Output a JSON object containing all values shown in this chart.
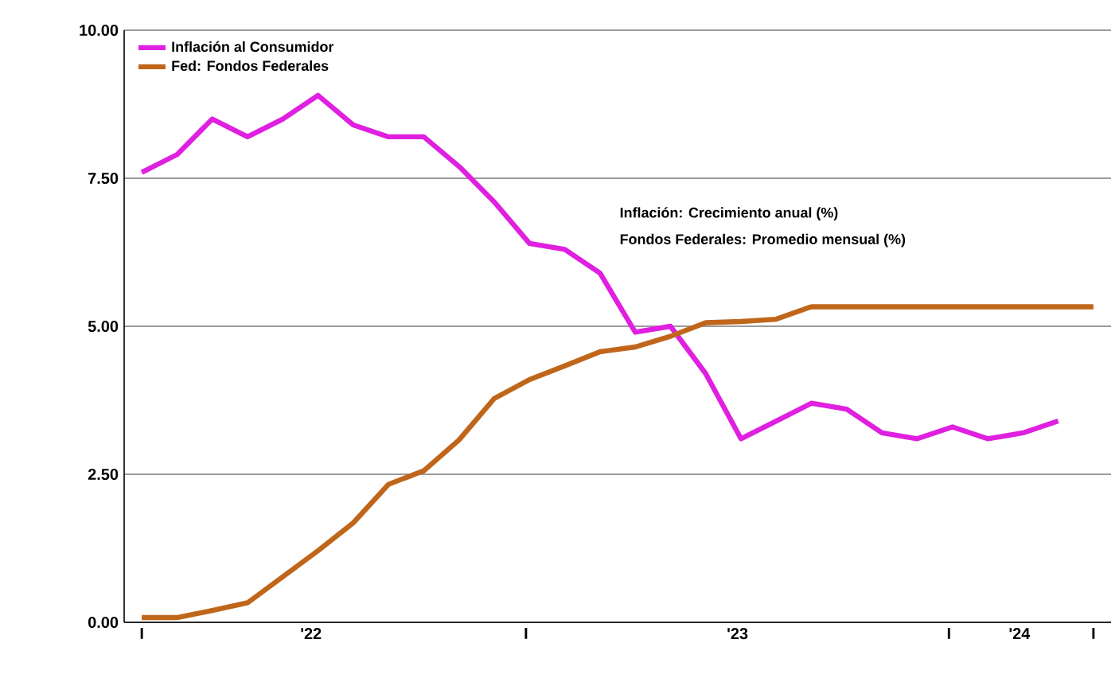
{
  "chart_data": {
    "type": "line",
    "x": [
      "2022-01",
      "2022-02",
      "2022-03",
      "2022-04",
      "2022-05",
      "2022-06",
      "2022-07",
      "2022-08",
      "2022-09",
      "2022-10",
      "2022-11",
      "2022-12",
      "2023-01",
      "2023-02",
      "2023-03",
      "2023-04",
      "2023-05",
      "2023-06",
      "2023-07",
      "2023-08",
      "2023-09",
      "2023-10",
      "2023-11",
      "2023-12",
      "2024-01",
      "2024-02",
      "2024-03",
      "2024-04"
    ],
    "series": [
      {
        "name": "Inflación al Consumidor",
        "color": "#e020e0",
        "values": [
          7.6,
          7.9,
          8.5,
          8.2,
          8.5,
          8.9,
          8.4,
          8.2,
          8.2,
          7.7,
          7.1,
          6.4,
          6.3,
          5.9,
          4.9,
          5.0,
          4.2,
          3.1,
          3.4,
          3.7,
          3.6,
          3.2,
          3.1,
          3.3,
          3.1,
          3.2,
          3.4,
          null
        ]
      },
      {
        "name": "Fed: Fondos Federales",
        "color": "#c0661a",
        "values": [
          0.08,
          0.08,
          0.2,
          0.33,
          0.77,
          1.21,
          1.68,
          2.33,
          2.56,
          3.08,
          3.78,
          4.1,
          4.33,
          4.57,
          4.65,
          4.83,
          5.06,
          5.08,
          5.12,
          5.33,
          5.33,
          5.33,
          5.33,
          5.33,
          5.33,
          5.33,
          5.33,
          5.33
        ]
      }
    ],
    "xlim": [
      "2021-12-16",
      "2024-04-16"
    ],
    "xticks": [
      {
        "value": "2022-01",
        "label": "I"
      },
      {
        "value": "2022-05-25",
        "label": "'22"
      },
      {
        "value": "2022-11-28",
        "label": "I"
      },
      {
        "value": "2023-05-28",
        "label": "'23"
      },
      {
        "value": "2023-11-28",
        "label": "I"
      },
      {
        "value": "2024-01-28",
        "label": "'24"
      },
      {
        "value": "2024-04",
        "label": "I"
      }
    ],
    "ylim": [
      0,
      10
    ],
    "yticks": [
      {
        "value": 0,
        "label": "0.00"
      },
      {
        "value": 2.5,
        "label": "2.50"
      },
      {
        "value": 5,
        "label": "5.00"
      },
      {
        "value": 7.5,
        "label": "7.50"
      },
      {
        "value": 10,
        "label": "10.00"
      }
    ],
    "grid": "y",
    "legend": "top left",
    "marker": "none",
    "line_style": "solid",
    "annotations": [
      "Inflación: Crecimiento anual (%)",
      "Fondos Federales: Promedio mensual (%)"
    ]
  }
}
